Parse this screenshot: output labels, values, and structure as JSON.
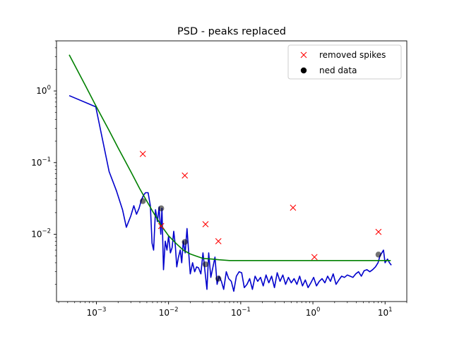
{
  "chart_data": {
    "type": "line",
    "title": "PSD - peaks replaced",
    "xlabel": "",
    "ylabel": "",
    "xscale": "log",
    "yscale": "log",
    "xlim": [
      0.00028,
      20
    ],
    "ylim": [
      0.00115,
      5.0
    ],
    "x_ticks": [
      {
        "value": 0.001,
        "base": "10",
        "exp": "−3"
      },
      {
        "value": 0.01,
        "base": "10",
        "exp": "−2"
      },
      {
        "value": 0.1,
        "base": "10",
        "exp": "−1"
      },
      {
        "value": 1,
        "base": "10",
        "exp": "0"
      },
      {
        "value": 10,
        "base": "10",
        "exp": "1"
      }
    ],
    "y_ticks": [
      {
        "value": 0.01,
        "base": "10",
        "exp": "−2"
      },
      {
        "value": 0.1,
        "base": "10",
        "exp": "−1"
      },
      {
        "value": 1,
        "base": "10",
        "exp": "0"
      }
    ],
    "grid": false,
    "legend_position": "top-right",
    "legend": [
      {
        "label": "removed spikes",
        "marker": "x",
        "color": "#ff0000"
      },
      {
        "label": "ned data",
        "marker": "o",
        "color": "#000000"
      }
    ],
    "series": [
      {
        "style": "line",
        "color": "#0000cc",
        "x": [
          0.00042,
          0.00098,
          0.0015,
          0.0019,
          0.0023,
          0.0026,
          0.003,
          0.0033,
          0.0036,
          0.0039,
          0.0042,
          0.0045,
          0.0048,
          0.0052,
          0.0056,
          0.0059,
          0.0062,
          0.0066,
          0.007,
          0.0074,
          0.0078,
          0.0081,
          0.0085,
          0.009,
          0.0095,
          0.01,
          0.0106,
          0.0112,
          0.0118,
          0.0124,
          0.013,
          0.0137,
          0.0145,
          0.0152,
          0.016,
          0.017,
          0.018,
          0.019,
          0.02,
          0.0215,
          0.023,
          0.0245,
          0.026,
          0.028,
          0.03,
          0.032,
          0.034,
          0.036,
          0.0385,
          0.041,
          0.044,
          0.047,
          0.05,
          0.054,
          0.058,
          0.063,
          0.068,
          0.074,
          0.08,
          0.087,
          0.095,
          0.103,
          0.112,
          0.122,
          0.133,
          0.145,
          0.158,
          0.172,
          0.188,
          0.205,
          0.224,
          0.245,
          0.268,
          0.293,
          0.32,
          0.35,
          0.383,
          0.419,
          0.458,
          0.501,
          0.548,
          0.6,
          0.656,
          0.717,
          0.784,
          0.857,
          0.937,
          1.025,
          1.12,
          1.225,
          1.34,
          1.465,
          1.6,
          1.75,
          1.91,
          2.09,
          2.29,
          2.5,
          2.74,
          3.0,
          3.28,
          3.58,
          3.92,
          4.29,
          4.69,
          5.13,
          5.61,
          6.14,
          6.72,
          7.35,
          8.0,
          8.5,
          9.0,
          9.5,
          10.0,
          10.8,
          11.5,
          12.2
        ],
        "y": [
          0.86,
          0.6,
          0.075,
          0.04,
          0.022,
          0.0125,
          0.018,
          0.025,
          0.019,
          0.023,
          0.03,
          0.035,
          0.038,
          0.038,
          0.025,
          0.0075,
          0.006,
          0.022,
          0.015,
          0.024,
          0.01,
          0.023,
          0.0032,
          0.008,
          0.006,
          0.0095,
          0.0055,
          0.0065,
          0.011,
          0.007,
          0.0035,
          0.0048,
          0.006,
          0.004,
          0.008,
          0.0055,
          0.012,
          0.0055,
          0.0028,
          0.004,
          0.003,
          0.0035,
          0.0034,
          0.0028,
          0.0055,
          0.003,
          0.0017,
          0.0055,
          0.0025,
          0.0034,
          0.0048,
          0.002,
          0.0026,
          0.0022,
          0.0017,
          0.003,
          0.0024,
          0.0022,
          0.0016,
          0.0026,
          0.003,
          0.0029,
          0.0018,
          0.002,
          0.0024,
          0.0017,
          0.0026,
          0.0022,
          0.0025,
          0.0019,
          0.0027,
          0.0021,
          0.0026,
          0.0018,
          0.0029,
          0.0022,
          0.0027,
          0.002,
          0.0025,
          0.0021,
          0.0024,
          0.002,
          0.0026,
          0.0019,
          0.0023,
          0.0018,
          0.0021,
          0.0025,
          0.0019,
          0.0022,
          0.0024,
          0.0021,
          0.0026,
          0.0022,
          0.0028,
          0.002,
          0.0023,
          0.0026,
          0.0025,
          0.0027,
          0.0026,
          0.0025,
          0.0028,
          0.003,
          0.0026,
          0.0031,
          0.0032,
          0.003,
          0.0032,
          0.0035,
          0.004,
          0.005,
          0.0055,
          0.006,
          0.004,
          0.0045,
          0.004,
          0.0037
        ]
      },
      {
        "style": "line",
        "color": "#008000",
        "x": [
          0.00042,
          0.0007,
          0.001,
          0.0015,
          0.002,
          0.003,
          0.004,
          0.005,
          0.006,
          0.008,
          0.01,
          0.013,
          0.016,
          0.02,
          0.025,
          0.03,
          0.04,
          0.05,
          0.07,
          0.1,
          0.15,
          0.3,
          1,
          3,
          10,
          12
        ],
        "y": [
          3.2,
          1.2,
          0.6,
          0.28,
          0.16,
          0.075,
          0.043,
          0.029,
          0.021,
          0.013,
          0.0095,
          0.0073,
          0.006,
          0.0053,
          0.0049,
          0.0046,
          0.0045,
          0.0044,
          0.0043,
          0.0043,
          0.0043,
          0.0043,
          0.0043,
          0.0043,
          0.0043,
          0.0043
        ]
      },
      {
        "style": "marker",
        "marker": "x",
        "color": "#ff0000",
        "x": [
          0.0044,
          0.0079,
          0.0168,
          0.0325,
          0.049,
          0.53,
          1.05,
          8.1
        ],
        "y": [
          0.132,
          0.013,
          0.066,
          0.0138,
          0.008,
          0.0235,
          0.0048,
          0.0108
        ]
      },
      {
        "style": "marker",
        "marker": "o",
        "color": "#000000",
        "x": [
          0.0044,
          0.0079,
          0.0168,
          0.0325,
          0.049,
          8.1
        ],
        "y": [
          0.029,
          0.023,
          0.0078,
          0.0038,
          0.0024,
          0.0052
        ]
      }
    ]
  }
}
